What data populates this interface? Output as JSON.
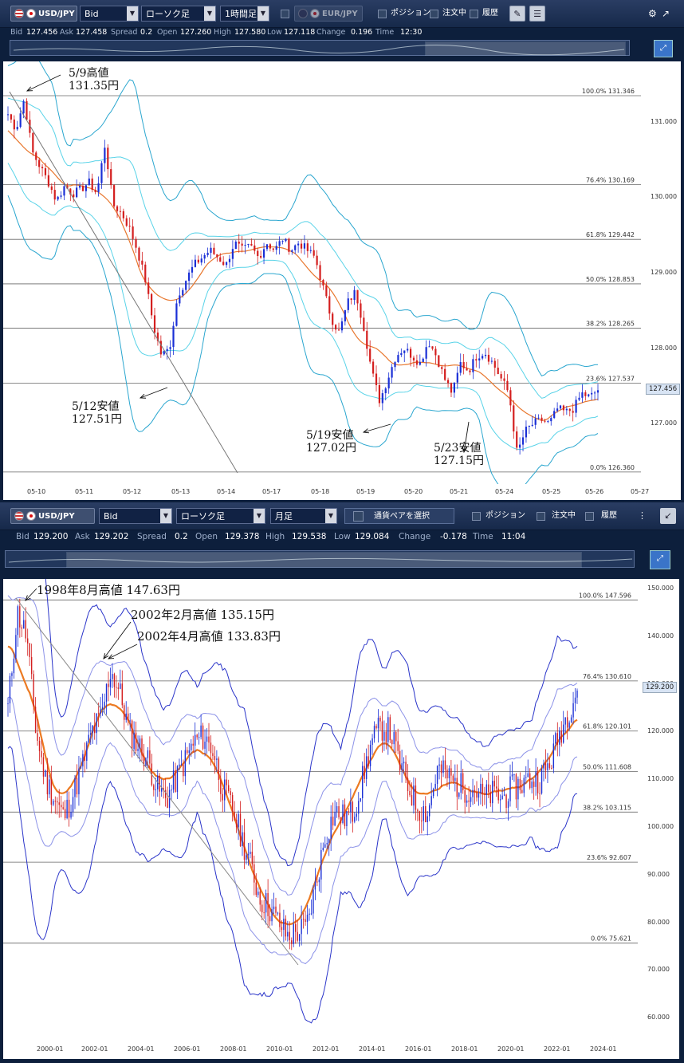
{
  "panels": [
    {
      "toolbar": {
        "symbol": "USD/JPY",
        "price_type": "Bid",
        "chart_type": "ローソク足",
        "period": "1時間足",
        "compare_symbol": "EUR/JPY",
        "positions_label": "ポジション",
        "orders_label": "注文中",
        "history_label": "履歴"
      },
      "quote": {
        "bid_label": "Bid",
        "bid": "127.456",
        "ask_label": "Ask",
        "ask": "127.458",
        "spread_label": "Spread",
        "spread": "0.2",
        "open_label": "Open",
        "open": "127.260",
        "high_label": "High",
        "high": "127.580",
        "low_label": "Low",
        "low": "127.118",
        "change_label": "Change",
        "change": "0.196",
        "time_label": "Time",
        "time": "12:30"
      },
      "chart_data": {
        "type": "candlestick",
        "ylim": [
          126.2,
          131.8
        ],
        "y_ticks": [
          "131.000",
          "130.000",
          "129.000",
          "128.000",
          "127.000"
        ],
        "y_tick_values": [
          131,
          130,
          129,
          128,
          127
        ],
        "x_ticks": [
          "05-10",
          "05-11",
          "05-12",
          "05-13",
          "05-14",
          "05-17",
          "05-18",
          "05-19",
          "05-20",
          "05-21",
          "05-24",
          "05-25",
          "05-26",
          "05-27"
        ],
        "current_price": "127.456",
        "fibonacci": [
          {
            "pct": "100.0%",
            "value": "131.346"
          },
          {
            "pct": "76.4%",
            "value": "130.169"
          },
          {
            "pct": "61.8%",
            "value": "129.442"
          },
          {
            "pct": "50.0%",
            "value": "128.853"
          },
          {
            "pct": "38.2%",
            "value": "128.265"
          },
          {
            "pct": "23.6%",
            "value": "127.537"
          },
          {
            "pct": "0.0%",
            "value": "126.360"
          }
        ],
        "close_path": [
          131.1,
          130.9,
          131.3,
          130.6,
          130.4,
          130.2,
          129.95,
          130.15,
          130.05,
          130.1,
          130.2,
          130.05,
          130.7,
          129.9,
          129.8,
          129.6,
          129.3,
          128.9,
          128.3,
          127.9,
          128.0,
          128.7,
          128.9,
          129.1,
          129.2,
          129.3,
          129.2,
          129.1,
          129.4,
          129.3,
          129.35,
          129.2,
          129.4,
          129.3,
          129.45,
          129.3,
          129.4,
          129.3,
          129.2,
          128.8,
          128.4,
          128.2,
          128.6,
          128.75,
          128.3,
          127.7,
          127.3,
          127.6,
          127.9,
          128.0,
          127.9,
          127.8,
          128.1,
          127.9,
          127.6,
          127.4,
          127.8,
          127.7,
          127.9,
          127.95,
          127.8,
          127.6,
          127.4,
          126.6,
          126.9,
          127.0,
          127.05,
          127.0,
          127.2,
          127.15,
          127.2,
          127.4,
          127.35,
          127.45
        ]
      },
      "annotations": [
        {
          "line1": "5/9高値",
          "line2": "131.35円"
        },
        {
          "line1": "5/12安値",
          "line2": "127.51円"
        },
        {
          "line1": "5/19安値",
          "line2": "127.02円"
        },
        {
          "line1": "5/23安値",
          "line2": "127.15円"
        }
      ]
    },
    {
      "toolbar": {
        "symbol": "USD/JPY",
        "price_type": "Bid",
        "chart_type": "ローソク足",
        "period": "月足",
        "pair_select": "通貨ペアを選択",
        "positions_label": "ポジション",
        "orders_label": "注文中",
        "history_label": "履歴"
      },
      "quote": {
        "bid_label": "Bid",
        "bid": "129.200",
        "ask_label": "Ask",
        "ask": "129.202",
        "spread_label": "Spread",
        "spread": "0.2",
        "open_label": "Open",
        "open": "129.378",
        "high_label": "High",
        "high": "129.538",
        "low_label": "Low",
        "low": "129.084",
        "change_label": "Change",
        "change": "-0.178",
        "time_label": "Time",
        "time": "11:04"
      },
      "chart_data": {
        "type": "candlestick",
        "ylim": [
          55,
          152
        ],
        "y_ticks": [
          "150.000",
          "140.000",
          "130.000",
          "120.000",
          "110.000",
          "100.000",
          "90.000",
          "80.000",
          "70.000",
          "60.000"
        ],
        "y_tick_values": [
          150,
          140,
          130,
          120,
          110,
          100,
          90,
          80,
          70,
          60
        ],
        "x_ticks": [
          "2000-01",
          "2002-01",
          "2004-01",
          "2006-01",
          "2008-01",
          "2010-01",
          "2012-01",
          "2014-01",
          "2016-01",
          "2018-01",
          "2020-01",
          "2022-01",
          "2024-01"
        ],
        "current_price": "129.200",
        "fibonacci": [
          {
            "pct": "100.0%",
            "value": "147.596"
          },
          {
            "pct": "76.4%",
            "value": "130.610"
          },
          {
            "pct": "61.8%",
            "value": "120.101"
          },
          {
            "pct": "50.0%",
            "value": "111.608"
          },
          {
            "pct": "38.2%",
            "value": "103.115"
          },
          {
            "pct": "23.6%",
            "value": "92.607"
          },
          {
            "pct": "0.0%",
            "value": "75.621"
          }
        ],
        "close_path": [
          125,
          145,
          140,
          120,
          110,
          106,
          102,
          107,
          113,
          120,
          123,
          133,
          128,
          120,
          117,
          114,
          108,
          106,
          110,
          114,
          118,
          119,
          116,
          108,
          104,
          98,
          92,
          85,
          83,
          80,
          77,
          78,
          79,
          88,
          98,
          103,
          102,
          103,
          110,
          118,
          121,
          120,
          113,
          108,
          104,
          103,
          112,
          111,
          109,
          108,
          108,
          106,
          107,
          106,
          108,
          109,
          110,
          110,
          113,
          119,
          124,
          129
        ]
      },
      "annotations": [
        {
          "text": "1998年8月高値 147.63円"
        },
        {
          "text": "2002年2月高値 135.15円"
        },
        {
          "text": "2002年4月高値 133.83円"
        }
      ]
    }
  ]
}
